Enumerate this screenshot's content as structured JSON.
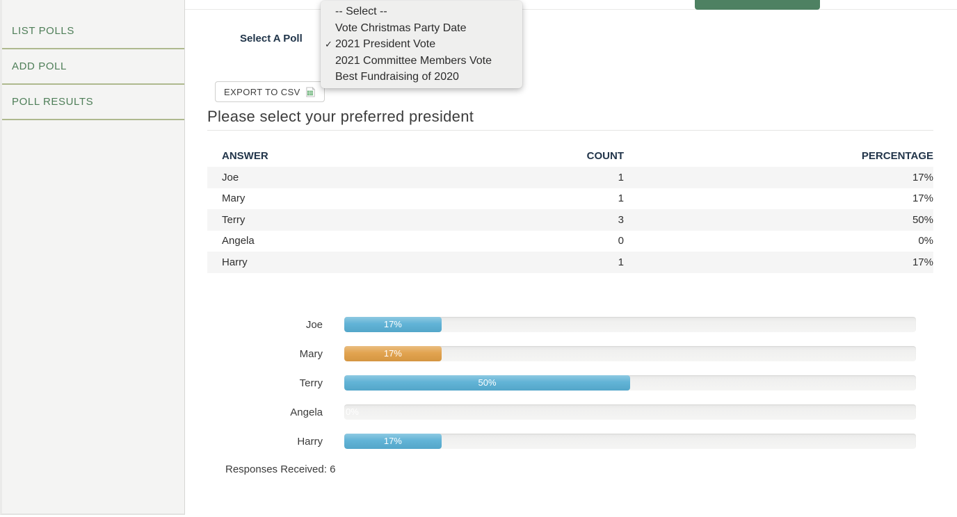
{
  "sidebar": {
    "items": [
      {
        "label": "LIST POLLS"
      },
      {
        "label": "ADD POLL"
      },
      {
        "label": "POLL RESULTS"
      }
    ]
  },
  "header": {
    "select_label": "Select A Poll",
    "export_button_label": "EXPORT TO CSV",
    "export_icon": "spreadsheet-icon",
    "action_button_color": "#4e8162"
  },
  "dropdown": {
    "checkmark": "✓",
    "selected": "2021 President Vote",
    "options": [
      "-- Select --",
      "Vote Christmas Party Date",
      "2021 President Vote",
      "2021 Committee Members Vote",
      "Best Fundraising of 2020"
    ]
  },
  "poll": {
    "title": "Please select your preferred president",
    "responses_text": "Responses Received: 6"
  },
  "table": {
    "headers": [
      "ANSWER",
      "COUNT",
      "PERCENTAGE"
    ],
    "rows": [
      {
        "answer": "Joe",
        "count": "1",
        "percentage": "17%"
      },
      {
        "answer": "Mary",
        "count": "1",
        "percentage": "17%"
      },
      {
        "answer": "Terry",
        "count": "3",
        "percentage": "50%"
      },
      {
        "answer": "Angela",
        "count": "0",
        "percentage": "0%"
      },
      {
        "answer": "Harry",
        "count": "1",
        "percentage": "17%"
      }
    ]
  },
  "chart_data": {
    "type": "bar",
    "orientation": "horizontal",
    "categories": [
      "Joe",
      "Mary",
      "Terry",
      "Angela",
      "Harry"
    ],
    "values": [
      17,
      17,
      50,
      0,
      17
    ],
    "value_labels": [
      "17%",
      "17%",
      "50%",
      "0%",
      "17%"
    ],
    "bar_colors": [
      "#58afd4",
      "#e09e45",
      "#58afd4",
      "#58afd4",
      "#58afd4"
    ],
    "track_color": "#f0f0ef",
    "xlim": [
      0,
      100
    ],
    "legend": null,
    "grid": false
  },
  "colors": {
    "sidebar_link_green": "#4e7e58",
    "sidebar_divider_olive": "#aeb98e",
    "header_button_green": "#4e8162",
    "bar_blue": "#58afd4",
    "bar_orange": "#e09e45",
    "table_header_navy": "#22354a"
  }
}
